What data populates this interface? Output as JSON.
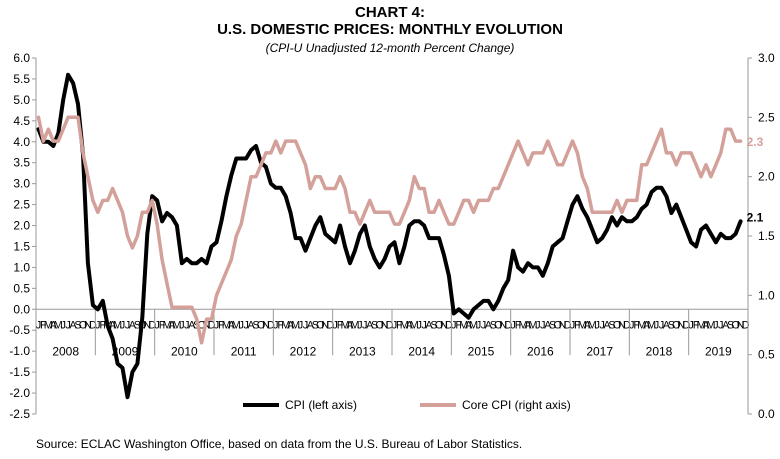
{
  "chart_data": {
    "type": "line",
    "title": "CHART 4:",
    "subtitle": "U.S. DOMESTIC PRICES: MONTHLY EVOLUTION",
    "caption": "(CPI-U Unadjusted  12-month Percent Change)",
    "source": "Source:  ECLAC Washington Office, based on data from the U.S. Bureau of Labor Statistics.",
    "ylim_left": [
      -2.5,
      6.0
    ],
    "ylim_right": [
      0.0,
      3.0
    ],
    "left_ticks": [
      "6.0",
      "5.5",
      "5.0",
      "4.5",
      "4.0",
      "3.5",
      "3.0",
      "2.5",
      "2.0",
      "1.5",
      "1.0",
      "0.5",
      "0.0",
      "-0.5",
      "-1.0",
      "-1.5",
      "-2.0",
      "-2.5"
    ],
    "right_ticks": [
      "3.0",
      "2.5",
      "2.0",
      "1.5",
      "1.0",
      "0.5",
      "0.0"
    ],
    "month_letters": [
      "J",
      "F",
      "M",
      "A",
      "M",
      "J",
      "J",
      "A",
      "S",
      "O",
      "N",
      "D"
    ],
    "years": [
      "2008",
      "2009",
      "2010",
      "2011",
      "2012",
      "2013",
      "2014",
      "2015",
      "2016",
      "2017",
      "2018",
      "2019"
    ],
    "series": [
      {
        "name": "CPI (left axis)",
        "axis": "left",
        "color": "#000000",
        "end_label": "2.1",
        "values": [
          4.3,
          4.0,
          4.0,
          3.9,
          4.2,
          5.0,
          5.6,
          5.4,
          4.9,
          3.7,
          1.1,
          0.1,
          0.0,
          0.2,
          -0.4,
          -0.7,
          -1.3,
          -1.4,
          -2.1,
          -1.5,
          -1.3,
          -0.2,
          1.8,
          2.7,
          2.6,
          2.1,
          2.3,
          2.2,
          2.0,
          1.1,
          1.2,
          1.1,
          1.1,
          1.2,
          1.1,
          1.5,
          1.6,
          2.1,
          2.7,
          3.2,
          3.6,
          3.6,
          3.6,
          3.8,
          3.9,
          3.5,
          3.4,
          3.0,
          2.9,
          2.9,
          2.7,
          2.3,
          1.7,
          1.7,
          1.4,
          1.7,
          2.0,
          2.2,
          1.8,
          1.7,
          1.6,
          2.0,
          1.5,
          1.1,
          1.4,
          1.8,
          2.0,
          1.5,
          1.2,
          1.0,
          1.2,
          1.5,
          1.6,
          1.1,
          1.5,
          2.0,
          2.1,
          2.1,
          2.0,
          1.7,
          1.7,
          1.7,
          1.3,
          0.8,
          -0.1,
          0.0,
          -0.1,
          -0.2,
          0.0,
          0.1,
          0.2,
          0.2,
          0.0,
          0.2,
          0.5,
          0.7,
          1.4,
          1.0,
          0.9,
          1.1,
          1.0,
          1.0,
          0.8,
          1.1,
          1.5,
          1.6,
          1.7,
          2.1,
          2.5,
          2.7,
          2.4,
          2.2,
          1.9,
          1.6,
          1.7,
          1.9,
          2.2,
          2.0,
          2.2,
          2.1,
          2.1,
          2.2,
          2.4,
          2.5,
          2.8,
          2.9,
          2.9,
          2.7,
          2.3,
          2.5,
          2.2,
          1.9,
          1.6,
          1.5,
          1.9,
          2.0,
          1.8,
          1.6,
          1.8,
          1.7,
          1.7,
          1.8,
          2.1
        ]
      },
      {
        "name": "Core CPI (right axis)",
        "axis": "right",
        "color": "#d4a09a",
        "end_label": "2.3",
        "values": [
          2.5,
          2.3,
          2.4,
          2.3,
          2.3,
          2.4,
          2.5,
          2.5,
          2.5,
          2.2,
          2.0,
          1.8,
          1.7,
          1.8,
          1.8,
          1.9,
          1.8,
          1.7,
          1.5,
          1.4,
          1.5,
          1.7,
          1.7,
          1.8,
          1.6,
          1.3,
          1.1,
          0.9,
          0.9,
          0.9,
          0.9,
          0.9,
          0.8,
          0.6,
          0.8,
          0.8,
          1.0,
          1.1,
          1.2,
          1.3,
          1.5,
          1.6,
          1.8,
          2.0,
          2.0,
          2.1,
          2.2,
          2.2,
          2.3,
          2.2,
          2.3,
          2.3,
          2.3,
          2.2,
          2.1,
          1.9,
          2.0,
          2.0,
          1.9,
          1.9,
          1.9,
          2.0,
          1.9,
          1.7,
          1.7,
          1.6,
          1.7,
          1.8,
          1.7,
          1.7,
          1.7,
          1.7,
          1.6,
          1.6,
          1.7,
          1.8,
          2.0,
          1.9,
          1.9,
          1.7,
          1.7,
          1.8,
          1.7,
          1.6,
          1.6,
          1.7,
          1.8,
          1.8,
          1.7,
          1.8,
          1.8,
          1.8,
          1.9,
          1.9,
          2.0,
          2.1,
          2.2,
          2.3,
          2.2,
          2.1,
          2.2,
          2.2,
          2.2,
          2.3,
          2.2,
          2.1,
          2.1,
          2.2,
          2.3,
          2.2,
          2.0,
          1.9,
          1.7,
          1.7,
          1.7,
          1.7,
          1.7,
          1.8,
          1.7,
          1.8,
          1.8,
          1.8,
          2.1,
          2.1,
          2.2,
          2.3,
          2.4,
          2.2,
          2.2,
          2.1,
          2.2,
          2.2,
          2.2,
          2.1,
          2.0,
          2.1,
          2.0,
          2.1,
          2.2,
          2.4,
          2.4,
          2.3,
          2.3
        ]
      }
    ]
  }
}
